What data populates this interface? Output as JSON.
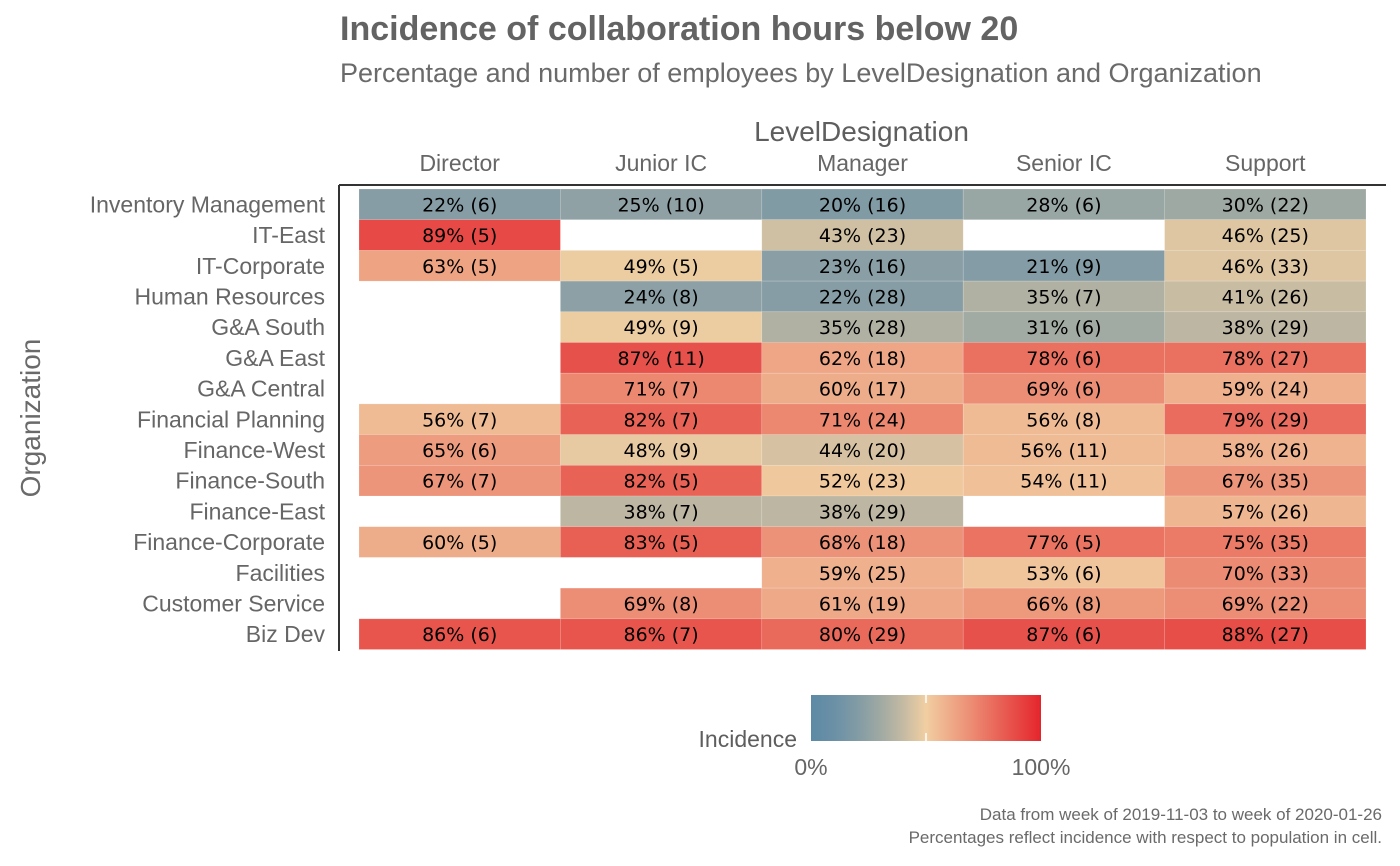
{
  "title": "Incidence of collaboration hours below 20",
  "subtitle": "Percentage and number of employees by LevelDesignation and Organization",
  "caption_line1": "Data from week of 2019-11-03 to week of 2020-01-26",
  "caption_line2": "Percentages reflect incidence with respect to population in cell.",
  "chart_data": {
    "type": "heatmap",
    "xlabel": "LevelDesignation",
    "ylabel": "Organization",
    "columns": [
      "Director",
      "Junior IC",
      "Manager",
      "Senior IC",
      "Support"
    ],
    "rows": [
      "Inventory Management",
      "IT-East",
      "IT-Corporate",
      "Human Resources",
      "G&A South",
      "G&A East",
      "G&A Central",
      "Financial Planning",
      "Finance-West",
      "Finance-South",
      "Finance-East",
      "Finance-Corporate",
      "Facilities",
      "Customer Service",
      "Biz Dev"
    ],
    "cells": [
      [
        {
          "pct": 22,
          "n": 6
        },
        {
          "pct": 25,
          "n": 10
        },
        {
          "pct": 20,
          "n": 16
        },
        {
          "pct": 28,
          "n": 6
        },
        {
          "pct": 30,
          "n": 22
        }
      ],
      [
        {
          "pct": 89,
          "n": 5
        },
        null,
        {
          "pct": 43,
          "n": 23
        },
        null,
        {
          "pct": 46,
          "n": 25
        }
      ],
      [
        {
          "pct": 63,
          "n": 5
        },
        {
          "pct": 49,
          "n": 5
        },
        {
          "pct": 23,
          "n": 16
        },
        {
          "pct": 21,
          "n": 9
        },
        {
          "pct": 46,
          "n": 33
        }
      ],
      [
        null,
        {
          "pct": 24,
          "n": 8
        },
        {
          "pct": 22,
          "n": 28
        },
        {
          "pct": 35,
          "n": 7
        },
        {
          "pct": 41,
          "n": 26
        }
      ],
      [
        null,
        {
          "pct": 49,
          "n": 9
        },
        {
          "pct": 35,
          "n": 28
        },
        {
          "pct": 31,
          "n": 6
        },
        {
          "pct": 38,
          "n": 29
        }
      ],
      [
        null,
        {
          "pct": 87,
          "n": 11
        },
        {
          "pct": 62,
          "n": 18
        },
        {
          "pct": 78,
          "n": 6
        },
        {
          "pct": 78,
          "n": 27
        }
      ],
      [
        null,
        {
          "pct": 71,
          "n": 7
        },
        {
          "pct": 60,
          "n": 17
        },
        {
          "pct": 69,
          "n": 6
        },
        {
          "pct": 59,
          "n": 24
        }
      ],
      [
        {
          "pct": 56,
          "n": 7
        },
        {
          "pct": 82,
          "n": 7
        },
        {
          "pct": 71,
          "n": 24
        },
        {
          "pct": 56,
          "n": 8
        },
        {
          "pct": 79,
          "n": 29
        }
      ],
      [
        {
          "pct": 65,
          "n": 6
        },
        {
          "pct": 48,
          "n": 9
        },
        {
          "pct": 44,
          "n": 20
        },
        {
          "pct": 56,
          "n": 11
        },
        {
          "pct": 58,
          "n": 26
        }
      ],
      [
        {
          "pct": 67,
          "n": 7
        },
        {
          "pct": 82,
          "n": 5
        },
        {
          "pct": 52,
          "n": 23
        },
        {
          "pct": 54,
          "n": 11
        },
        {
          "pct": 67,
          "n": 35
        }
      ],
      [
        null,
        {
          "pct": 38,
          "n": 7
        },
        {
          "pct": 38,
          "n": 29
        },
        null,
        {
          "pct": 57,
          "n": 26
        }
      ],
      [
        {
          "pct": 60,
          "n": 5
        },
        {
          "pct": 83,
          "n": 5
        },
        {
          "pct": 68,
          "n": 18
        },
        {
          "pct": 77,
          "n": 5
        },
        {
          "pct": 75,
          "n": 35
        }
      ],
      [
        null,
        null,
        {
          "pct": 59,
          "n": 25
        },
        {
          "pct": 53,
          "n": 6
        },
        {
          "pct": 70,
          "n": 33
        }
      ],
      [
        null,
        {
          "pct": 69,
          "n": 8
        },
        {
          "pct": 61,
          "n": 19
        },
        {
          "pct": 66,
          "n": 8
        },
        {
          "pct": 69,
          "n": 22
        }
      ],
      [
        {
          "pct": 86,
          "n": 6
        },
        {
          "pct": 86,
          "n": 7
        },
        {
          "pct": 80,
          "n": 29
        },
        {
          "pct": 87,
          "n": 6
        },
        {
          "pct": 88,
          "n": 27
        }
      ]
    ],
    "legend": {
      "title": "Incidence",
      "min_label": "0%",
      "max_label": "100%",
      "colors": [
        "#1d6fa3",
        "#f1cfa2",
        "#e4252c"
      ]
    }
  }
}
